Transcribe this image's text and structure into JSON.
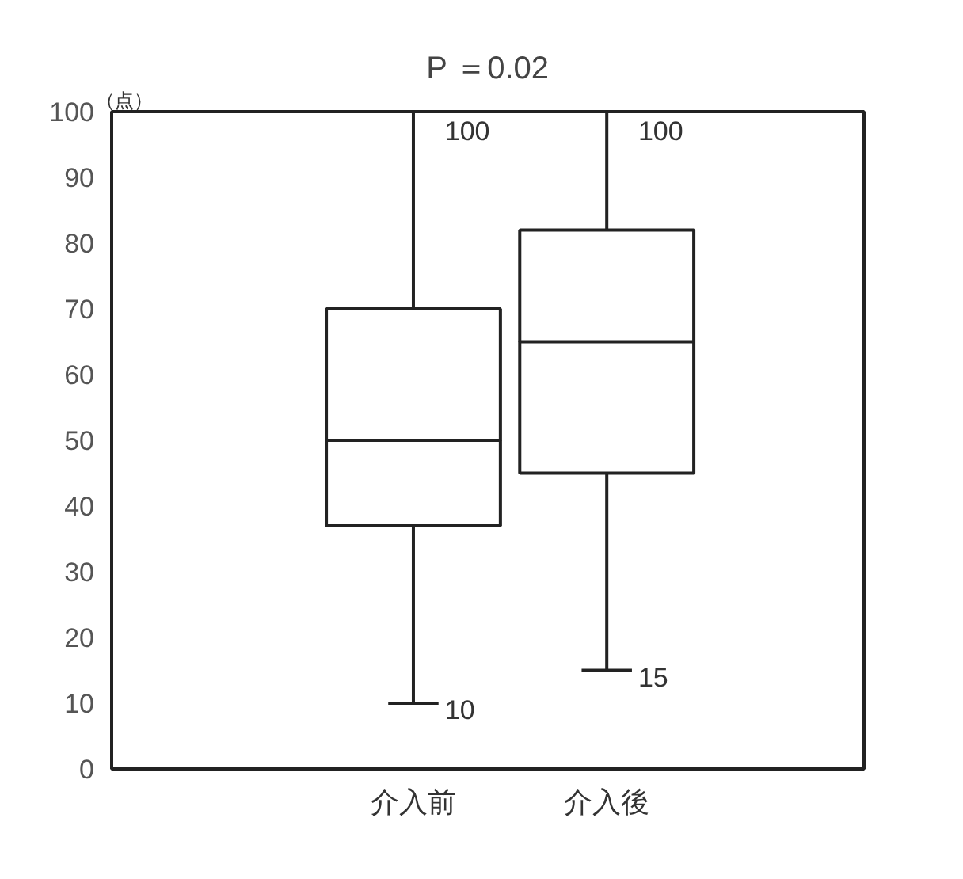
{
  "chart_data": {
    "type": "box",
    "title": "P ＝0.02",
    "ylabel": "（点）",
    "categories": [
      "介入前",
      "介入後"
    ],
    "boxes": [
      {
        "low": 10,
        "q1": 37,
        "median": 50,
        "q3": 70,
        "high": 100
      },
      {
        "low": 15,
        "q1": 45,
        "median": 65,
        "q3": 82,
        "high": 100
      }
    ],
    "ylim": [
      0,
      100
    ],
    "yticks": [
      0,
      10,
      20,
      30,
      40,
      50,
      60,
      70,
      80,
      90,
      100
    ],
    "annotations": [
      {
        "text": "100",
        "x": "介入前",
        "y": 100
      },
      {
        "text": "10",
        "x": "介入前",
        "y": 10
      },
      {
        "text": "100",
        "x": "介入後",
        "y": 100
      },
      {
        "text": "15",
        "x": "介入後",
        "y": 15
      }
    ],
    "grid": false
  }
}
